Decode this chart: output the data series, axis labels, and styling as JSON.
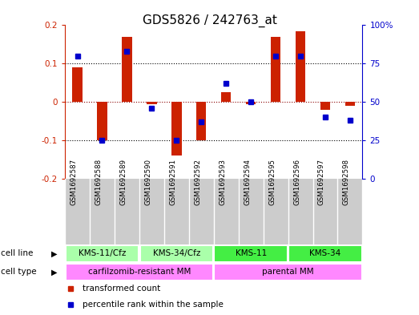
{
  "title": "GDS5826 / 242763_at",
  "samples": [
    "GSM1692587",
    "GSM1692588",
    "GSM1692589",
    "GSM1692590",
    "GSM1692591",
    "GSM1692592",
    "GSM1692593",
    "GSM1692594",
    "GSM1692595",
    "GSM1692596",
    "GSM1692597",
    "GSM1692598"
  ],
  "transformed_count": [
    0.09,
    -0.1,
    0.17,
    -0.005,
    -0.14,
    -0.1,
    0.025,
    -0.005,
    0.17,
    0.185,
    -0.02,
    -0.01
  ],
  "percentile_rank": [
    80,
    25,
    83,
    46,
    25,
    37,
    62,
    50,
    80,
    80,
    40,
    38
  ],
  "cell_line_groups": [
    {
      "label": "KMS-11/Cfz",
      "start": 0,
      "end": 3,
      "color": "#AAFFAA"
    },
    {
      "label": "KMS-34/Cfz",
      "start": 3,
      "end": 6,
      "color": "#AAFFAA"
    },
    {
      "label": "KMS-11",
      "start": 6,
      "end": 9,
      "color": "#44EE44"
    },
    {
      "label": "KMS-34",
      "start": 9,
      "end": 12,
      "color": "#44EE44"
    }
  ],
  "cell_type_groups": [
    {
      "label": "carfilzomib-resistant MM",
      "start": 0,
      "end": 6,
      "color": "#FF88FF"
    },
    {
      "label": "parental MM",
      "start": 6,
      "end": 12,
      "color": "#FF88FF"
    }
  ],
  "bar_color": "#CC2200",
  "dot_color": "#0000CC",
  "ylim_left": [
    -0.2,
    0.2
  ],
  "ylim_right": [
    0,
    100
  ],
  "yticks_left": [
    -0.2,
    -0.1,
    0.0,
    0.1,
    0.2
  ],
  "ytick_labels_left": [
    "-0.2",
    "-0.1",
    "0",
    "0.1",
    "0.2"
  ],
  "yticks_right": [
    0,
    25,
    50,
    75,
    100
  ],
  "ytick_labels_right": [
    "0",
    "25",
    "50",
    "75",
    "100%"
  ],
  "legend_items": [
    {
      "label": "transformed count",
      "color": "#CC2200"
    },
    {
      "label": "percentile rank within the sample",
      "color": "#0000CC"
    }
  ],
  "background_color": "#FFFFFF",
  "bar_width": 0.4,
  "label_fontsize": 8,
  "title_fontsize": 11
}
